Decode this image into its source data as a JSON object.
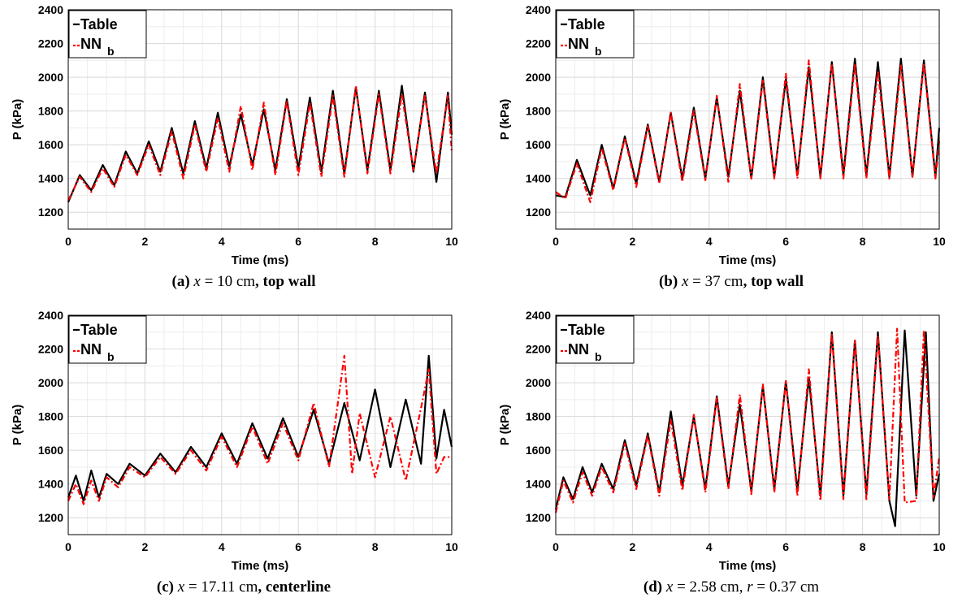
{
  "colors": {
    "table": "#000000",
    "nn": "#ff0000",
    "grid": "#dcdcdc",
    "minor_grid": "#ededed"
  },
  "legend": {
    "table": "Table",
    "nn_main": "NN",
    "nn_sub": "b"
  },
  "chart_data": [
    {
      "type": "line",
      "panel": "a",
      "xlabel": "Time (ms)",
      "ylabel": "P (kPa)",
      "xlim": [
        0,
        10
      ],
      "ylim": [
        1100,
        2400
      ],
      "xticks": [
        0,
        2,
        4,
        6,
        8,
        10
      ],
      "yticks": [
        1200,
        1400,
        1600,
        1800,
        2000,
        2200,
        2400
      ],
      "grid": true,
      "legend_position": "top-left",
      "caption": {
        "label": "(a)",
        "var1": "x",
        "eq1": " = 10 cm",
        "rest": ", top wall"
      },
      "series": [
        {
          "name": "Table",
          "style": "solid",
          "x": [
            0,
            0.3,
            0.6,
            0.9,
            1.2,
            1.5,
            1.8,
            2.1,
            2.4,
            2.7,
            3.0,
            3.3,
            3.6,
            3.9,
            4.2,
            4.5,
            4.8,
            5.1,
            5.4,
            5.7,
            6.0,
            6.3,
            6.6,
            6.9,
            7.2,
            7.5,
            7.8,
            8.1,
            8.4,
            8.7,
            9.0,
            9.3,
            9.6,
            9.9,
            10
          ],
          "y": [
            1260,
            1420,
            1330,
            1480,
            1360,
            1560,
            1430,
            1620,
            1440,
            1700,
            1430,
            1740,
            1460,
            1790,
            1470,
            1780,
            1480,
            1810,
            1450,
            1870,
            1460,
            1880,
            1440,
            1920,
            1430,
            1940,
            1450,
            1920,
            1450,
            1950,
            1440,
            1910,
            1380,
            1910,
            1660
          ]
        },
        {
          "name": "NN b",
          "style": "dashed",
          "x": [
            0,
            0.3,
            0.6,
            0.9,
            1.2,
            1.5,
            1.8,
            2.1,
            2.4,
            2.7,
            3.0,
            3.3,
            3.6,
            3.9,
            4.2,
            4.5,
            4.8,
            5.1,
            5.4,
            5.7,
            6.0,
            6.3,
            6.6,
            6.9,
            7.2,
            7.5,
            7.8,
            8.1,
            8.4,
            8.7,
            9.0,
            9.3,
            9.6,
            9.9,
            10
          ],
          "y": [
            1270,
            1410,
            1320,
            1460,
            1350,
            1540,
            1420,
            1600,
            1420,
            1680,
            1400,
            1720,
            1440,
            1760,
            1440,
            1830,
            1450,
            1850,
            1420,
            1860,
            1420,
            1850,
            1410,
            1890,
            1410,
            1950,
            1430,
            1900,
            1430,
            1900,
            1450,
            1890,
            1430,
            1890,
            1560
          ]
        }
      ]
    },
    {
      "type": "line",
      "panel": "b",
      "xlabel": "Time (ms)",
      "ylabel": "P (kPa)",
      "xlim": [
        0,
        10
      ],
      "ylim": [
        1100,
        2400
      ],
      "xticks": [
        0,
        2,
        4,
        6,
        8,
        10
      ],
      "yticks": [
        1200,
        1400,
        1600,
        1800,
        2000,
        2200,
        2400
      ],
      "grid": true,
      "legend_position": "top-left",
      "caption": {
        "label": "(b)",
        "var1": "x",
        "eq1": " = 37 cm",
        "rest": ", top wall"
      },
      "series": [
        {
          "name": "Table",
          "style": "solid",
          "x": [
            0,
            0.25,
            0.55,
            0.9,
            1.2,
            1.5,
            1.8,
            2.1,
            2.4,
            2.7,
            3.0,
            3.3,
            3.6,
            3.9,
            4.2,
            4.5,
            4.8,
            5.1,
            5.4,
            5.7,
            6.0,
            6.3,
            6.6,
            6.9,
            7.2,
            7.5,
            7.8,
            8.1,
            8.4,
            8.7,
            9.0,
            9.3,
            9.6,
            9.9,
            10
          ],
          "y": [
            1300,
            1290,
            1510,
            1300,
            1600,
            1340,
            1650,
            1370,
            1720,
            1380,
            1790,
            1400,
            1820,
            1400,
            1880,
            1410,
            1920,
            1400,
            2000,
            1410,
            1990,
            1420,
            2060,
            1410,
            2090,
            1420,
            2110,
            1420,
            2090,
            1410,
            2110,
            1410,
            2100,
            1410,
            1700
          ]
        },
        {
          "name": "NN b",
          "style": "dashed",
          "x": [
            0,
            0.25,
            0.55,
            0.9,
            1.2,
            1.5,
            1.8,
            2.1,
            2.4,
            2.7,
            3.0,
            3.3,
            3.6,
            3.9,
            4.2,
            4.5,
            4.8,
            5.1,
            5.4,
            5.7,
            6.0,
            6.3,
            6.6,
            6.9,
            7.2,
            7.5,
            7.8,
            8.1,
            8.4,
            8.7,
            9.0,
            9.3,
            9.6,
            9.9,
            10
          ],
          "y": [
            1320,
            1280,
            1490,
            1260,
            1580,
            1330,
            1640,
            1350,
            1710,
            1370,
            1790,
            1380,
            1800,
            1390,
            1890,
            1380,
            1960,
            1400,
            1980,
            1400,
            2020,
            1400,
            2100,
            1400,
            2080,
            1400,
            2080,
            1400,
            2040,
            1400,
            2070,
            1410,
            2080,
            1400,
            1620
          ]
        }
      ]
    },
    {
      "type": "line",
      "panel": "c",
      "xlabel": "Time (ms)",
      "ylabel": "P (kPa)",
      "xlim": [
        0,
        10
      ],
      "ylim": [
        1100,
        2400
      ],
      "xticks": [
        0,
        2,
        4,
        6,
        8,
        10
      ],
      "yticks": [
        1200,
        1400,
        1600,
        1800,
        2000,
        2200,
        2400
      ],
      "grid": true,
      "legend_position": "top-left",
      "caption": {
        "label": "(c)",
        "var1": "x",
        "eq1": " = 17.11 cm",
        "rest": ", centerline"
      },
      "series": [
        {
          "name": "Table",
          "style": "solid",
          "x": [
            0,
            0.2,
            0.4,
            0.6,
            0.8,
            1.0,
            1.3,
            1.6,
            2.0,
            2.4,
            2.8,
            3.2,
            3.6,
            4.0,
            4.4,
            4.8,
            5.2,
            5.6,
            6.0,
            6.4,
            6.8,
            7.2,
            7.6,
            8.0,
            8.4,
            8.8,
            9.2,
            9.4,
            9.6,
            9.8,
            10
          ],
          "y": [
            1320,
            1450,
            1300,
            1480,
            1320,
            1460,
            1400,
            1520,
            1450,
            1580,
            1470,
            1620,
            1500,
            1700,
            1520,
            1760,
            1550,
            1790,
            1560,
            1840,
            1520,
            1880,
            1540,
            1960,
            1500,
            1900,
            1520,
            2160,
            1550,
            1840,
            1620
          ]
        },
        {
          "name": "NN b",
          "style": "dashed",
          "x": [
            0,
            0.2,
            0.4,
            0.6,
            0.8,
            1.0,
            1.3,
            1.6,
            2.0,
            2.4,
            2.8,
            3.2,
            3.6,
            4.0,
            4.4,
            4.8,
            5.2,
            5.6,
            6.0,
            6.4,
            6.8,
            7.2,
            7.4,
            7.6,
            8.0,
            8.4,
            8.8,
            9.2,
            9.4,
            9.6,
            9.8,
            10
          ],
          "y": [
            1300,
            1400,
            1280,
            1420,
            1300,
            1440,
            1380,
            1500,
            1440,
            1560,
            1460,
            1600,
            1480,
            1680,
            1500,
            1740,
            1520,
            1760,
            1540,
            1880,
            1500,
            2160,
            1460,
            1820,
            1440,
            1800,
            1420,
            1850,
            2080,
            1460,
            1560,
            1560
          ]
        }
      ]
    },
    {
      "type": "line",
      "panel": "d",
      "xlabel": "Time (ms)",
      "ylabel": "P (kPa)",
      "xlim": [
        0,
        10
      ],
      "ylim": [
        1100,
        2400
      ],
      "xticks": [
        0,
        2,
        4,
        6,
        8,
        10
      ],
      "yticks": [
        1200,
        1400,
        1600,
        1800,
        2000,
        2200,
        2400
      ],
      "grid": true,
      "legend_position": "top-left",
      "caption": {
        "label": "(d)",
        "var1": "x",
        "eq1": " = 2.58 cm, ",
        "var2": "r",
        "eq2": " = 0.37 cm",
        "rest": ""
      },
      "series": [
        {
          "name": "Table",
          "style": "solid",
          "x": [
            0,
            0.2,
            0.45,
            0.7,
            0.95,
            1.2,
            1.5,
            1.8,
            2.1,
            2.4,
            2.7,
            3.0,
            3.3,
            3.6,
            3.9,
            4.2,
            4.5,
            4.8,
            5.1,
            5.4,
            5.7,
            6.0,
            6.3,
            6.6,
            6.9,
            7.2,
            7.5,
            7.8,
            8.1,
            8.4,
            8.7,
            8.85,
            9.1,
            9.4,
            9.65,
            9.85,
            10
          ],
          "y": [
            1250,
            1440,
            1310,
            1500,
            1350,
            1520,
            1370,
            1660,
            1390,
            1700,
            1350,
            1830,
            1390,
            1800,
            1370,
            1920,
            1390,
            1870,
            1360,
            1980,
            1370,
            2010,
            1360,
            2030,
            1330,
            2300,
            1330,
            2250,
            1340,
            2300,
            1300,
            1150,
            2310,
            1330,
            2300,
            1300,
            1460
          ]
        },
        {
          "name": "NN b",
          "style": "dashed",
          "x": [
            0,
            0.2,
            0.45,
            0.7,
            0.95,
            1.2,
            1.5,
            1.8,
            2.1,
            2.4,
            2.7,
            3.0,
            3.3,
            3.6,
            3.9,
            4.2,
            4.5,
            4.8,
            5.1,
            5.4,
            5.7,
            6.0,
            6.3,
            6.6,
            6.9,
            7.2,
            7.5,
            7.8,
            8.1,
            8.4,
            8.7,
            8.9,
            9.1,
            9.4,
            9.6,
            9.85,
            10
          ],
          "y": [
            1230,
            1420,
            1290,
            1470,
            1330,
            1500,
            1350,
            1640,
            1370,
            1690,
            1330,
            1780,
            1360,
            1810,
            1350,
            1910,
            1370,
            1930,
            1340,
            1990,
            1350,
            2010,
            1330,
            2080,
            1300,
            2290,
            1310,
            2250,
            1310,
            2280,
            1310,
            2320,
            1290,
            1300,
            2310,
            1320,
            1560
          ]
        }
      ]
    }
  ]
}
